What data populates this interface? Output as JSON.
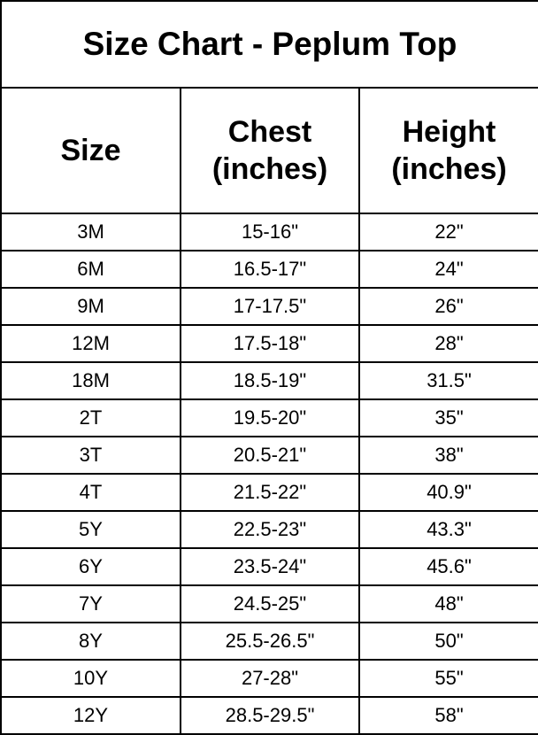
{
  "title": "Size Chart - Peplum Top",
  "headers": {
    "size": "Size",
    "chest": [
      "Chest",
      "(inches)"
    ],
    "height": [
      "Height",
      "(inches)"
    ]
  },
  "rows": [
    {
      "size": "3M",
      "chest": "15-16\"",
      "height": "22\""
    },
    {
      "size": "6M",
      "chest": "16.5-17\"",
      "height": "24\""
    },
    {
      "size": "9M",
      "chest": "17-17.5\"",
      "height": "26\""
    },
    {
      "size": "12M",
      "chest": "17.5-18\"",
      "height": "28\""
    },
    {
      "size": "18M",
      "chest": "18.5-19\"",
      "height": "31.5\""
    },
    {
      "size": "2T",
      "chest": "19.5-20\"",
      "height": "35\""
    },
    {
      "size": "3T",
      "chest": "20.5-21\"",
      "height": "38\""
    },
    {
      "size": "4T",
      "chest": "21.5-22\"",
      "height": "40.9\""
    },
    {
      "size": "5Y",
      "chest": "22.5-23\"",
      "height": "43.3\""
    },
    {
      "size": "6Y",
      "chest": "23.5-24\"",
      "height": "45.6\""
    },
    {
      "size": "7Y",
      "chest": "24.5-25\"",
      "height": "48\""
    },
    {
      "size": "8Y",
      "chest": "25.5-26.5\"",
      "height": "50\""
    },
    {
      "size": "10Y",
      "chest": "27-28\"",
      "height": "55\""
    },
    {
      "size": "12Y",
      "chest": "28.5-29.5\"",
      "height": "58\""
    }
  ]
}
